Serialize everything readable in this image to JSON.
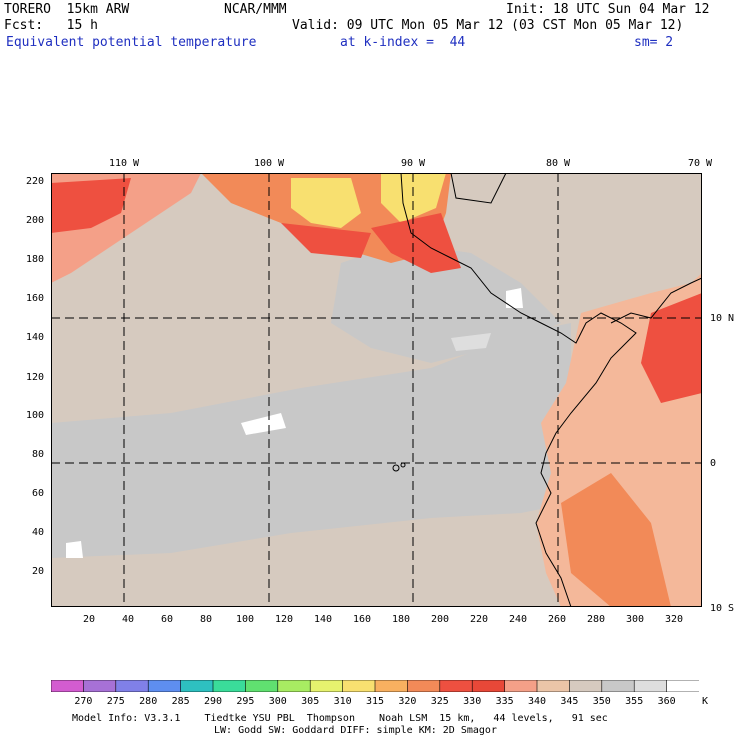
{
  "header": {
    "model": "TORERO  15km ARW",
    "org": "NCAR/MMM",
    "init": "Init: 18 UTC Sun 04 Mar 12",
    "fcst": "Fcst:   15 h",
    "valid": "Valid: 09 UTC Mon 05 Mar 12 (03 CST Mon 05 Mar 12)",
    "field": "Equivalent potential temperature",
    "level": "at k-index =  44",
    "smooth": "sm= 2"
  },
  "axes": {
    "top_lon_labels": [
      "110 W",
      "100 W",
      "90 W",
      "80 W",
      "70 W"
    ],
    "right_lat_labels": [
      "10 N",
      "0",
      "10 S"
    ],
    "left_ticks": [
      "220",
      "200",
      "180",
      "160",
      "140",
      "120",
      "100",
      "80",
      "60",
      "40",
      "20"
    ],
    "bottom_ticks": [
      "20",
      "40",
      "60",
      "80",
      "100",
      "120",
      "140",
      "160",
      "180",
      "200",
      "220",
      "240",
      "260",
      "280",
      "300",
      "320"
    ]
  },
  "colorbar": {
    "labels": [
      "270",
      "275",
      "280",
      "285",
      "290",
      "295",
      "300",
      "305",
      "310",
      "315",
      "320",
      "325",
      "330",
      "335",
      "340",
      "345",
      "350",
      "355",
      "360"
    ],
    "unit": "K",
    "colors": [
      "#d35cd0",
      "#a771d6",
      "#8080e8",
      "#5e8ef0",
      "#2ec0c0",
      "#3adc9a",
      "#60e070",
      "#a8ec62",
      "#e6f26e",
      "#f8e070",
      "#f8b060",
      "#f28a58",
      "#ee5040",
      "#e84838",
      "#f4a088",
      "#ebc5a8",
      "#d6cabf",
      "#c8c8c8",
      "#dedede",
      "#ffffff"
    ]
  },
  "footer": {
    "line1": "Model Info: V3.3.1    Tiedtke YSU PBL  Thompson    Noah LSM  15 km,   44 levels,   91 sec",
    "line2": "LW: Godd SW: Goddard DIFF: simple KM: 2D Smagor"
  },
  "map_colors": {
    "ocean_base": "#d6cabf",
    "cool_band": "#c8c8c8",
    "warm_land": "#f4b89a",
    "hot": "#ee5040",
    "hotter": "#f28a58",
    "peak": "#f8e070",
    "lightest": "#ffffff"
  }
}
